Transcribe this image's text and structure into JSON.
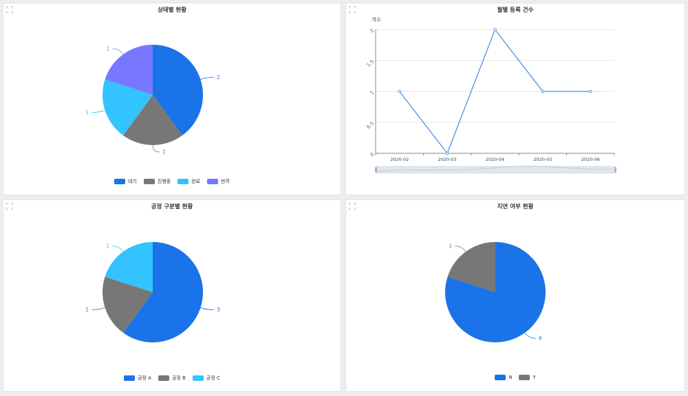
{
  "colors": {
    "blue": "#1a73e8",
    "gray": "#777777",
    "cyan": "#33c3ff",
    "purple": "#7778ff",
    "line": "#4a90e2"
  },
  "icons": {
    "expand": "expand-icon"
  },
  "chart_data": [
    {
      "type": "pie",
      "title": "상태별 현황",
      "categories": [
        "대기",
        "진행중",
        "완료",
        "반려"
      ],
      "values": [
        2,
        1,
        1,
        1
      ],
      "colors": [
        "#1a73e8",
        "#777777",
        "#33c3ff",
        "#7778ff"
      ],
      "legend_position": "bottom"
    },
    {
      "type": "line",
      "title": "월별 등록 건수",
      "ylabel": "개수",
      "x": [
        "2020-02",
        "2020-03",
        "2020-04",
        "2020-05",
        "2020-06"
      ],
      "y": [
        1,
        0,
        2,
        1,
        1
      ],
      "yticks": [
        "0",
        "0.5",
        "1",
        "1.5",
        "2"
      ],
      "ylim": [
        0,
        2
      ],
      "grid": true,
      "zoom_slider": true
    },
    {
      "type": "pie",
      "title": "공정 구분별 현황",
      "categories": [
        "공정 A",
        "공정 B",
        "공정 C"
      ],
      "values": [
        3,
        1,
        1
      ],
      "colors": [
        "#1a73e8",
        "#777777",
        "#33c3ff"
      ],
      "legend_position": "bottom"
    },
    {
      "type": "pie",
      "title": "지연 여부 현황",
      "categories": [
        "N",
        "Y"
      ],
      "values": [
        4,
        1
      ],
      "colors": [
        "#1a73e8",
        "#777777"
      ],
      "legend_position": "bottom"
    }
  ]
}
